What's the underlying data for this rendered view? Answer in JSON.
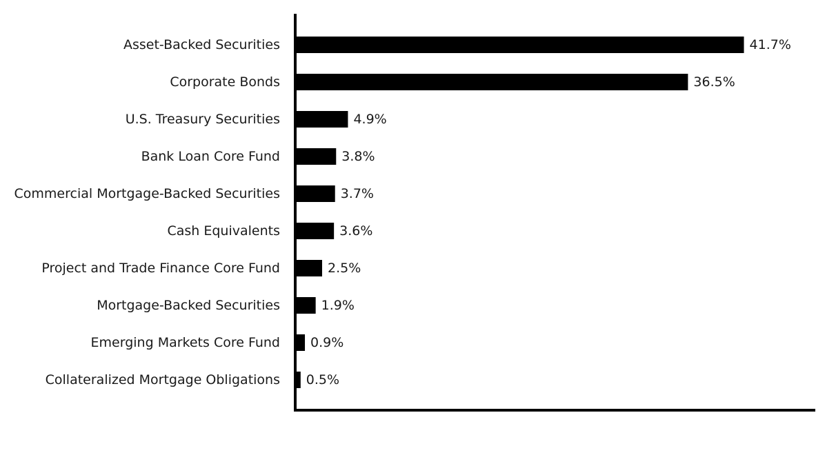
{
  "chart_data": {
    "type": "bar",
    "orientation": "horizontal",
    "categories": [
      "Asset-Backed Securities",
      "Corporate Bonds",
      "U.S. Treasury Securities",
      "Bank Loan Core Fund",
      "Commercial Mortgage-Backed Securities",
      "Cash Equivalents",
      "Project and Trade Finance Core Fund",
      "Mortgage-Backed Securities",
      "Emerging Markets Core Fund",
      "Collateralized Mortgage Obligations"
    ],
    "values": [
      41.7,
      36.5,
      4.9,
      3.8,
      3.7,
      3.6,
      2.5,
      1.9,
      0.9,
      0.5
    ],
    "value_labels": [
      "41.7%",
      "36.5%",
      "4.9%",
      "3.8%",
      "3.7%",
      "3.6%",
      "2.5%",
      "1.9%",
      "0.9%",
      "0.5%"
    ],
    "xlim": [
      0,
      50
    ],
    "grid": false,
    "legend": "none",
    "bar_color": "#000000"
  }
}
